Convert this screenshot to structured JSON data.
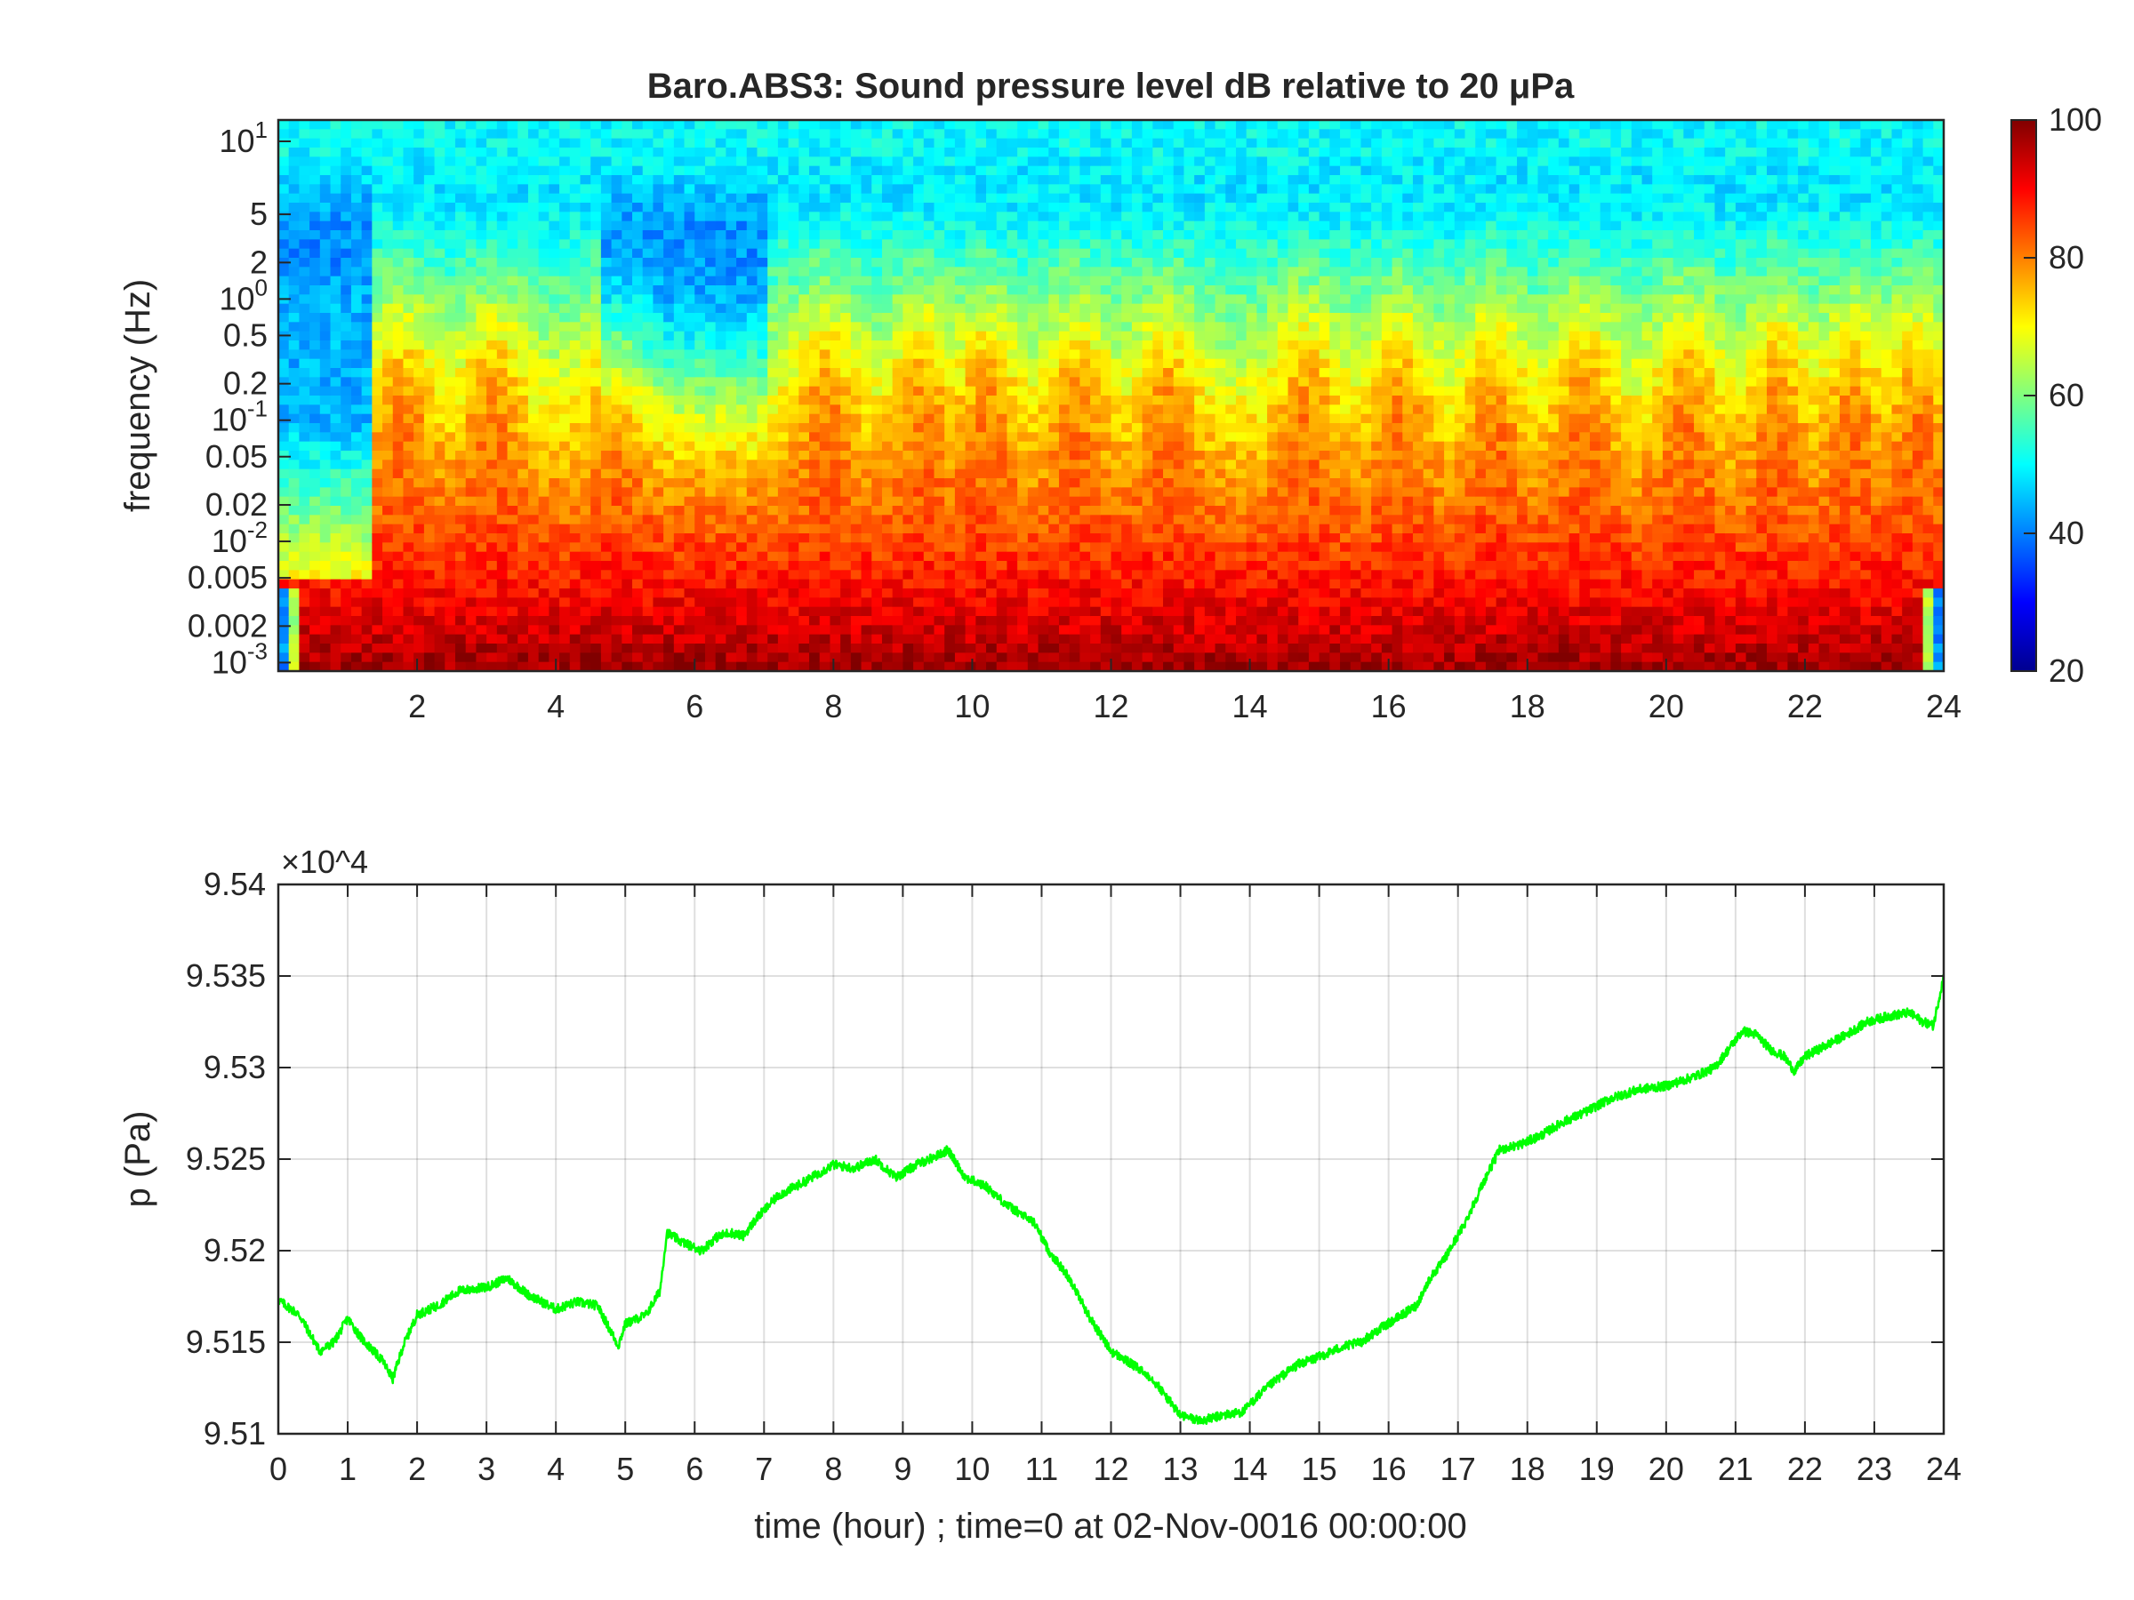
{
  "chart_data": [
    {
      "type": "heatmap",
      "title": "Baro.ABS3: Sound pressure level dB relative to 20 μPa",
      "xlabel": "",
      "ylabel": "frequency (Hz)",
      "xlim": [
        0,
        24
      ],
      "x_ticks": [
        "2",
        "4",
        "6",
        "8",
        "10",
        "12",
        "14",
        "16",
        "18",
        "20",
        "22",
        "24"
      ],
      "y_scale": "log",
      "ylim": [
        0.00085,
        30
      ],
      "y_ticks": [
        {
          "value": 20,
          "label": "10^1"
        },
        {
          "value": 5,
          "label": "5"
        },
        {
          "value": 2,
          "label": "2"
        },
        {
          "value": 1,
          "label": "10^0"
        },
        {
          "value": 0.5,
          "label": "0.5"
        },
        {
          "value": 0.2,
          "label": "0.2"
        },
        {
          "value": 0.1,
          "label": "10^-1"
        },
        {
          "value": 0.05,
          "label": "0.05"
        },
        {
          "value": 0.02,
          "label": "0.02"
        },
        {
          "value": 0.01,
          "label": "10^-2"
        },
        {
          "value": 0.005,
          "label": "0.005"
        },
        {
          "value": 0.002,
          "label": "0.002"
        },
        {
          "value": 0.001,
          "label": "10^-3"
        }
      ],
      "colormap": "jet",
      "colorbar": {
        "range": [
          20,
          100
        ],
        "ticks": [
          "20",
          "40",
          "60",
          "80",
          "100"
        ]
      },
      "high_energy_bursts_hours": [
        1.8,
        3.1,
        4.9,
        7.9,
        9.3,
        10.2,
        11.5,
        12.8,
        14.8,
        16.2,
        17.5,
        18.8,
        20.3,
        21.6,
        22.7,
        23.6
      ],
      "quiet_intervals_hours": [
        [
          0,
          1.35
        ],
        [
          4.6,
          7.0
        ]
      ],
      "levels_db_summary": {
        "above_10Hz": 50,
        "quiet_interval_0.5_to_5Hz": 44,
        "burst_0.02_to_0.2Hz": 88,
        "below_0.003Hz": 92
      },
      "grid": false
    },
    {
      "type": "line",
      "title": "",
      "xlabel": "time (hour) ; time=0 at 02-Nov-0016 00:00:00",
      "ylabel": "p (Pa)",
      "y_multiplier": "×10^4",
      "xlim": [
        0,
        24
      ],
      "ylim": [
        95100,
        95400
      ],
      "x_ticks": [
        "0",
        "1",
        "2",
        "3",
        "4",
        "5",
        "6",
        "7",
        "8",
        "9",
        "10",
        "11",
        "12",
        "13",
        "14",
        "15",
        "16",
        "17",
        "18",
        "19",
        "20",
        "21",
        "22",
        "23",
        "24"
      ],
      "y_ticks": [
        "9.51",
        "9.515",
        "9.52",
        "9.525",
        "9.53",
        "9.535",
        "9.54"
      ],
      "grid": true,
      "line_color": "#00ff00",
      "series": [
        {
          "x": [
            0,
            0.3,
            0.6,
            0.8,
            1.0,
            1.2,
            1.5,
            1.65,
            1.8,
            2.0,
            2.3,
            2.6,
            3.0,
            3.3,
            3.6,
            4.0,
            4.3,
            4.6,
            4.9,
            5.0,
            5.3,
            5.5,
            5.6,
            5.8,
            6.1,
            6.3,
            6.5,
            6.7,
            6.9,
            7.2,
            7.6,
            8.0,
            8.3,
            8.6,
            8.9,
            9.2,
            9.5,
            9.65,
            9.9,
            10.2,
            10.5,
            10.9,
            11.1,
            11.4,
            11.7,
            12.0,
            12.3,
            12.6,
            12.8,
            13.0,
            13.3,
            13.6,
            13.9,
            14.1,
            14.4,
            14.7,
            15.0,
            15.3,
            15.6,
            15.9,
            16.2,
            16.4,
            16.6,
            16.8,
            17.1,
            17.4,
            17.6,
            17.9,
            18.2,
            18.5,
            18.8,
            19.2,
            19.6,
            20.0,
            20.4,
            20.7,
            20.9,
            21.1,
            21.3,
            21.5,
            21.7,
            21.85,
            22.0,
            22.3,
            22.6,
            22.9,
            23.2,
            23.5,
            23.7,
            23.85,
            24.0
          ],
          "y": [
            95173,
            95165,
            95145,
            95150,
            95163,
            95152,
            95140,
            95130,
            95148,
            95165,
            95170,
            95178,
            95180,
            95185,
            95176,
            95168,
            95172,
            95170,
            95148,
            95160,
            95165,
            95178,
            95210,
            95205,
            95200,
            95207,
            95210,
            95208,
            95218,
            95230,
            95238,
            95247,
            95245,
            95250,
            95240,
            95247,
            95252,
            95255,
            95240,
            95235,
            95225,
            95215,
            95200,
            95185,
            95163,
            95145,
            95138,
            95130,
            95120,
            95110,
            95107,
            95110,
            95112,
            95120,
            95130,
            95138,
            95142,
            95147,
            95150,
            95158,
            95165,
            95170,
            95185,
            95195,
            95215,
            95240,
            95255,
            95258,
            95263,
            95270,
            95275,
            95283,
            95288,
            95290,
            95295,
            95300,
            95310,
            95320,
            95318,
            95310,
            95306,
            95298,
            95306,
            95312,
            95318,
            95325,
            95328,
            95330,
            95325,
            95323,
            95350
          ]
        }
      ]
    }
  ]
}
